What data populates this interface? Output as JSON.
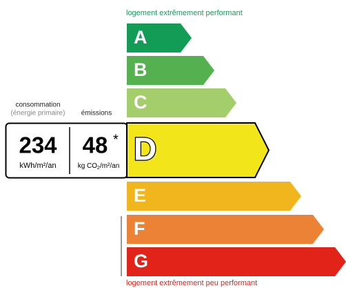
{
  "top_label": "logement extrêmement performant",
  "bottom_label": "logement extrêmement peu performant",
  "consumption": {
    "title": "consommation",
    "subtitle": "(énergie primaire)",
    "value": 234,
    "unit": "kWh/m²/an"
  },
  "emissions": {
    "title": "émissions",
    "value": 48,
    "note": "*",
    "unit": [
      "kg CO",
      "2",
      "/m²/an"
    ]
  },
  "classes": [
    {
      "letter": "A",
      "color": "#129c55"
    },
    {
      "letter": "B",
      "color": "#55b04f"
    },
    {
      "letter": "C",
      "color": "#a4cd6b"
    },
    {
      "letter": "D",
      "color": "#f2e61b",
      "active": true
    },
    {
      "letter": "E",
      "color": "#f1b61d"
    },
    {
      "letter": "F",
      "color": "#ec8235"
    },
    {
      "letter": "G",
      "color": "#e2231a"
    }
  ]
}
